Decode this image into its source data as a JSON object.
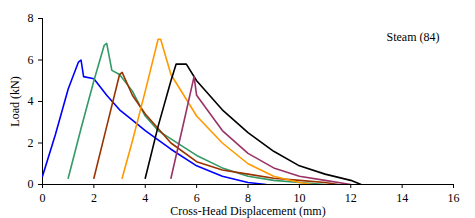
{
  "chart_data": {
    "type": "line",
    "xlabel": "Cross-Head Displacement (mm)",
    "ylabel": "Load (kN)",
    "annotations": [
      {
        "text": "Steam (84)"
      }
    ],
    "xlim": [
      0,
      16
    ],
    "xticks": [
      0,
      2,
      4,
      6,
      8,
      10,
      12,
      14,
      16
    ],
    "ylim": [
      0,
      8
    ],
    "yticks": [
      0,
      2,
      4,
      6,
      8
    ],
    "grid": false,
    "series": [
      {
        "color": "#0000ff",
        "x": [
          0,
          0.5,
          1.0,
          1.4,
          1.5,
          1.6,
          2.0,
          2.5,
          3.0,
          3.5,
          4.0,
          5.0,
          6.0,
          7.0,
          8.0,
          8.7
        ],
        "values": [
          0.4,
          2.4,
          4.6,
          5.9,
          6.0,
          5.2,
          5.1,
          4.3,
          3.6,
          3.1,
          2.6,
          1.7,
          0.9,
          0.4,
          0.1,
          0
        ]
      },
      {
        "color": "#339966",
        "x": [
          1.0,
          1.5,
          2.0,
          2.4,
          2.5,
          2.7,
          3.0,
          3.5,
          4.0,
          4.5,
          5.0,
          6.0,
          7.0,
          8.0,
          9.0,
          10.0,
          11.0
        ],
        "values": [
          0.3,
          2.7,
          5.0,
          6.7,
          6.8,
          5.5,
          5.3,
          4.5,
          3.3,
          2.6,
          2.2,
          1.4,
          0.8,
          0.4,
          0.2,
          0.1,
          0
        ]
      },
      {
        "color": "#993300",
        "x": [
          2.0,
          2.5,
          3.0,
          3.1,
          3.5,
          4.0,
          5.0,
          6.0,
          7.0,
          8.0,
          9.0,
          10.0,
          11.0,
          11.5
        ],
        "values": [
          0.3,
          2.8,
          5.3,
          5.4,
          4.3,
          3.4,
          2.0,
          1.1,
          0.7,
          0.5,
          0.3,
          0.2,
          0.1,
          0
        ]
      },
      {
        "color": "#ff9900",
        "x": [
          3.1,
          3.5,
          4.0,
          4.5,
          4.6,
          5.0,
          5.5,
          6.0,
          7.0,
          8.0,
          9.0,
          10.0,
          10.5
        ],
        "values": [
          0.3,
          2.1,
          4.5,
          7.0,
          7.0,
          5.3,
          4.3,
          3.3,
          2.0,
          1.0,
          0.4,
          0.1,
          0
        ]
      },
      {
        "color": "#000000",
        "x": [
          4.0,
          4.5,
          5.0,
          5.2,
          5.6,
          6.0,
          7.0,
          8.0,
          9.0,
          10.0,
          11.0,
          12.0,
          12.4
        ],
        "values": [
          0.3,
          2.8,
          5.0,
          5.8,
          5.8,
          5.0,
          3.6,
          2.5,
          1.6,
          0.9,
          0.5,
          0.2,
          0
        ]
      },
      {
        "color": "#993366",
        "x": [
          5.0,
          5.5,
          5.9,
          6.0,
          7.0,
          8.0,
          9.0,
          10.0,
          11.0,
          12.0
        ],
        "values": [
          0.3,
          3.0,
          5.2,
          4.3,
          2.6,
          1.5,
          0.8,
          0.4,
          0.2,
          0
        ]
      }
    ]
  }
}
